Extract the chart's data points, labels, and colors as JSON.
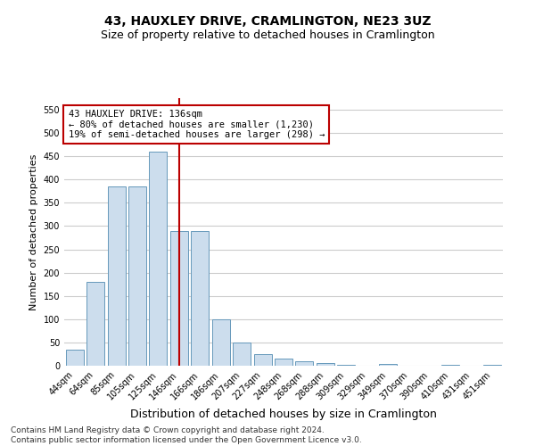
{
  "title": "43, HAUXLEY DRIVE, CRAMLINGTON, NE23 3UZ",
  "subtitle": "Size of property relative to detached houses in Cramlington",
  "xlabel": "Distribution of detached houses by size in Cramlington",
  "ylabel": "Number of detached properties",
  "categories": [
    "44sqm",
    "64sqm",
    "85sqm",
    "105sqm",
    "125sqm",
    "146sqm",
    "166sqm",
    "186sqm",
    "207sqm",
    "227sqm",
    "248sqm",
    "268sqm",
    "288sqm",
    "309sqm",
    "329sqm",
    "349sqm",
    "370sqm",
    "390sqm",
    "410sqm",
    "431sqm",
    "451sqm"
  ],
  "values": [
    35,
    180,
    385,
    385,
    460,
    290,
    290,
    100,
    50,
    25,
    15,
    10,
    5,
    1,
    0,
    3,
    0,
    0,
    1,
    0,
    1
  ],
  "bar_color": "#ccdded",
  "bar_edge_color": "#6699bb",
  "vline_x": 5.0,
  "vline_color": "#bb0000",
  "annotation_text": "43 HAUXLEY DRIVE: 136sqm\n← 80% of detached houses are smaller (1,230)\n19% of semi-detached houses are larger (298) →",
  "annotation_box_color": "#ffffff",
  "annotation_box_edge_color": "#bb0000",
  "ylim": [
    0,
    575
  ],
  "yticks": [
    0,
    50,
    100,
    150,
    200,
    250,
    300,
    350,
    400,
    450,
    500,
    550
  ],
  "footer": "Contains HM Land Registry data © Crown copyright and database right 2024.\nContains public sector information licensed under the Open Government Licence v3.0.",
  "background_color": "#ffffff",
  "grid_color": "#cccccc",
  "title_fontsize": 10,
  "subtitle_fontsize": 9,
  "xlabel_fontsize": 9,
  "ylabel_fontsize": 8,
  "tick_fontsize": 7,
  "annotation_fontsize": 7.5,
  "footer_fontsize": 6.5
}
